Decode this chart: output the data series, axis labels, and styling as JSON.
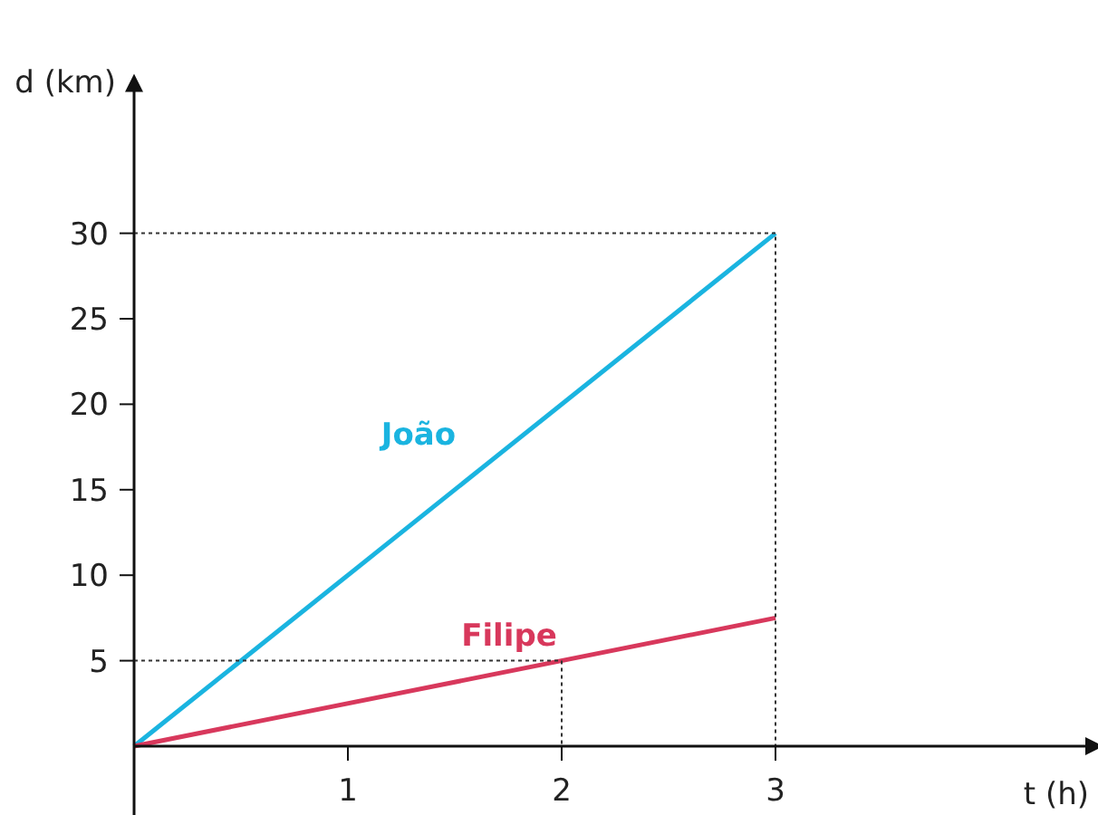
{
  "chart_data": {
    "type": "line",
    "xlabel": "t (h)",
    "ylabel": "d (km)",
    "xlim": [
      0,
      4.5
    ],
    "ylim": [
      0,
      38.9
    ],
    "xticks": [
      1,
      2,
      3
    ],
    "yticks": [
      5,
      10,
      15,
      20,
      25,
      30
    ],
    "grid": false,
    "marker": "none",
    "series": [
      {
        "name": "João",
        "color": "#1ab4e0",
        "x": [
          0,
          3
        ],
        "values": [
          0,
          30
        ],
        "line_style": "solid"
      },
      {
        "name": "Filipe",
        "color": "#d8385c",
        "x": [
          0,
          3
        ],
        "values": [
          0,
          7.5
        ],
        "line_style": "solid"
      },
      {
        "color": "#333333",
        "x": [
          0,
          3,
          3
        ],
        "values": [
          30,
          30,
          0
        ],
        "line_style": "dotted"
      },
      {
        "color": "#333333",
        "x": [
          0,
          2,
          2
        ],
        "values": [
          5,
          5,
          0
        ],
        "line_style": "dotted"
      }
    ]
  }
}
